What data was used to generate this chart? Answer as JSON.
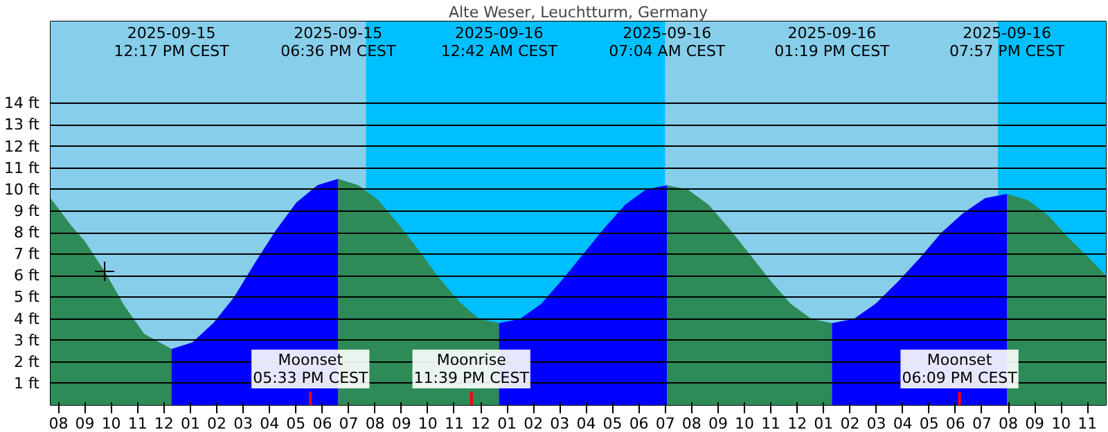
{
  "chart_data": {
    "type": "area",
    "title": "Alte Weser, Leuchtturm, Germany",
    "series": [
      {
        "color": "#2e8b57",
        "x": [
          "2025-09-15T07:42",
          "2025-09-15T08:30",
          "2025-09-15T09:00",
          "2025-09-15T09:45",
          "2025-09-15T10:30",
          "2025-09-15T11:15",
          "2025-09-15T12:17"
        ],
        "values": [
          9.6,
          8.3,
          7.6,
          6.2,
          4.6,
          3.3,
          2.6
        ]
      },
      {
        "color": "#0000ff",
        "x": [
          "2025-09-15T12:17",
          "2025-09-15T13:04",
          "2025-09-15T13:52",
          "2025-09-15T14:39",
          "2025-09-15T15:27",
          "2025-09-15T16:14",
          "2025-09-15T17:01",
          "2025-09-15T17:49",
          "2025-09-15T18:36"
        ],
        "values": [
          2.6,
          2.9,
          3.8,
          5.0,
          6.6,
          8.1,
          9.4,
          10.2,
          10.5
        ]
      },
      {
        "color": "#2e8b57",
        "x": [
          "2025-09-15T18:36",
          "2025-09-15T19:22",
          "2025-09-15T20:08",
          "2025-09-15T20:53",
          "2025-09-15T21:39",
          "2025-09-15T22:25",
          "2025-09-15T23:11",
          "2025-09-15T23:56",
          "2025-09-16T00:42"
        ],
        "values": [
          10.5,
          10.2,
          9.5,
          8.4,
          7.2,
          5.9,
          4.8,
          4.0,
          3.8
        ]
      },
      {
        "color": "#0000ff",
        "x": [
          "2025-09-16T00:42",
          "2025-09-16T01:30",
          "2025-09-16T02:18",
          "2025-09-16T03:05",
          "2025-09-16T03:53",
          "2025-09-16T04:41",
          "2025-09-16T05:29",
          "2025-09-16T06:16",
          "2025-09-16T07:04"
        ],
        "values": [
          3.8,
          4.0,
          4.7,
          5.8,
          7.0,
          8.2,
          9.3,
          10.0,
          10.2
        ]
      },
      {
        "color": "#2e8b57",
        "x": [
          "2025-09-16T07:04",
          "2025-09-16T07:51",
          "2025-09-16T08:38",
          "2025-09-16T09:25",
          "2025-09-16T10:12",
          "2025-09-16T10:58",
          "2025-09-16T11:45",
          "2025-09-16T12:32",
          "2025-09-16T13:19"
        ],
        "values": [
          10.2,
          10.0,
          9.3,
          8.2,
          7.0,
          5.8,
          4.7,
          4.0,
          3.8
        ]
      },
      {
        "color": "#0000ff",
        "x": [
          "2025-09-16T13:19",
          "2025-09-16T14:09",
          "2025-09-16T14:58",
          "2025-09-16T15:48",
          "2025-09-16T16:38",
          "2025-09-16T17:28",
          "2025-09-16T18:17",
          "2025-09-16T19:07",
          "2025-09-16T19:57"
        ],
        "values": [
          3.8,
          4.0,
          4.7,
          5.7,
          6.8,
          8.0,
          8.9,
          9.6,
          9.8
        ]
      },
      {
        "color": "#2e8b57",
        "x": [
          "2025-09-16T19:57",
          "2025-09-16T20:45",
          "2025-09-16T21:30",
          "2025-09-16T22:15",
          "2025-09-16T23:00",
          "2025-09-16T23:42"
        ],
        "values": [
          9.8,
          9.5,
          8.8,
          7.8,
          6.9,
          6.0
        ]
      },
      {
        "type": "scatter",
        "marker": "cross",
        "color": "#000000",
        "x": [
          "2025-09-15T09:45"
        ],
        "values": [
          6.2
        ]
      }
    ],
    "annotations": [
      "2025-09-15\n12:17 PM CEST",
      "2025-09-15\n06:36 PM CEST",
      "2025-09-16\n12:42 AM CEST",
      "2025-09-16\n07:04 AM CEST",
      "2025-09-16\n01:19 PM CEST",
      "2025-09-16\n07:57 PM CEST"
    ],
    "ref_lines": [
      {
        "axis": "x",
        "value": "2025-09-15T17:33",
        "label": "Moonset\n05:33 PM CEST",
        "color": "#ff0000"
      },
      {
        "axis": "x",
        "value": "2025-09-15T23:39",
        "label": "Moonrise\n11:39 PM CEST",
        "color": "#ff0000"
      },
      {
        "axis": "x",
        "value": "2025-09-16T18:09",
        "label": "Moonset\n06:09 PM CEST",
        "color": "#ff0000"
      }
    ],
    "bands": [
      {
        "axis": "x",
        "from": "2025-09-15T07:42",
        "to": "2025-09-15T19:39",
        "label": null,
        "color": "#87ceeb"
      },
      {
        "axis": "x",
        "from": "2025-09-15T19:39",
        "to": "2025-09-16T07:00",
        "label": null,
        "color": "#00bfff"
      },
      {
        "axis": "x",
        "from": "2025-09-16T07:00",
        "to": "2025-09-16T19:36",
        "label": null,
        "color": "#87ceeb"
      },
      {
        "axis": "x",
        "from": "2025-09-16T19:36",
        "to": "2025-09-16T23:42",
        "label": null,
        "color": "#00bfff"
      }
    ],
    "xlim": [
      "2025-09-15T07:42",
      "2025-09-16T23:42"
    ],
    "ylim": [
      0,
      17.8
    ],
    "yticks": [
      {
        "value": 1,
        "label": "1 ft"
      },
      {
        "value": 2,
        "label": "2 ft"
      },
      {
        "value": 3,
        "label": "3 ft"
      },
      {
        "value": 4,
        "label": "4 ft"
      },
      {
        "value": 5,
        "label": "5 ft"
      },
      {
        "value": 6,
        "label": "6 ft"
      },
      {
        "value": 7,
        "label": "7 ft"
      },
      {
        "value": 8,
        "label": "8 ft"
      },
      {
        "value": 9,
        "label": "9 ft"
      },
      {
        "value": 10,
        "label": "10 ft"
      },
      {
        "value": 11,
        "label": "11 ft"
      },
      {
        "value": 12,
        "label": "12 ft"
      },
      {
        "value": 13,
        "label": "13 ft"
      },
      {
        "value": 14,
        "label": "14 ft"
      }
    ],
    "xticks": [
      {
        "value": "2025-09-15T08:00",
        "label": "08"
      },
      {
        "value": "2025-09-15T09:00",
        "label": "09"
      },
      {
        "value": "2025-09-15T10:00",
        "label": "10"
      },
      {
        "value": "2025-09-15T11:00",
        "label": "11"
      },
      {
        "value": "2025-09-15T12:00",
        "label": "12"
      },
      {
        "value": "2025-09-15T13:00",
        "label": "01"
      },
      {
        "value": "2025-09-15T14:00",
        "label": "02"
      },
      {
        "value": "2025-09-15T15:00",
        "label": "03"
      },
      {
        "value": "2025-09-15T16:00",
        "label": "04"
      },
      {
        "value": "2025-09-15T17:00",
        "label": "05"
      },
      {
        "value": "2025-09-15T18:00",
        "label": "06"
      },
      {
        "value": "2025-09-15T19:00",
        "label": "07"
      },
      {
        "value": "2025-09-15T20:00",
        "label": "08"
      },
      {
        "value": "2025-09-15T21:00",
        "label": "09"
      },
      {
        "value": "2025-09-15T22:00",
        "label": "10"
      },
      {
        "value": "2025-09-15T23:00",
        "label": "11"
      },
      {
        "value": "2025-09-16T00:00",
        "label": "12"
      },
      {
        "value": "2025-09-16T01:00",
        "label": "01"
      },
      {
        "value": "2025-09-16T02:00",
        "label": "02"
      },
      {
        "value": "2025-09-16T03:00",
        "label": "03"
      },
      {
        "value": "2025-09-16T04:00",
        "label": "04"
      },
      {
        "value": "2025-09-16T05:00",
        "label": "05"
      },
      {
        "value": "2025-09-16T06:00",
        "label": "06"
      },
      {
        "value": "2025-09-16T07:00",
        "label": "07"
      },
      {
        "value": "2025-09-16T08:00",
        "label": "08"
      },
      {
        "value": "2025-09-16T09:00",
        "label": "09"
      },
      {
        "value": "2025-09-16T10:00",
        "label": "10"
      },
      {
        "value": "2025-09-16T11:00",
        "label": "11"
      },
      {
        "value": "2025-09-16T12:00",
        "label": "12"
      },
      {
        "value": "2025-09-16T13:00",
        "label": "01"
      },
      {
        "value": "2025-09-16T14:00",
        "label": "02"
      },
      {
        "value": "2025-09-16T15:00",
        "label": "03"
      },
      {
        "value": "2025-09-16T16:00",
        "label": "04"
      },
      {
        "value": "2025-09-16T17:00",
        "label": "05"
      },
      {
        "value": "2025-09-16T18:00",
        "label": "06"
      },
      {
        "value": "2025-09-16T19:00",
        "label": "07"
      },
      {
        "value": "2025-09-16T20:00",
        "label": "08"
      },
      {
        "value": "2025-09-16T21:00",
        "label": "09"
      },
      {
        "value": "2025-09-16T22:00",
        "label": "10"
      },
      {
        "value": "2025-09-16T23:00",
        "label": "11"
      }
    ],
    "grid": "y"
  }
}
